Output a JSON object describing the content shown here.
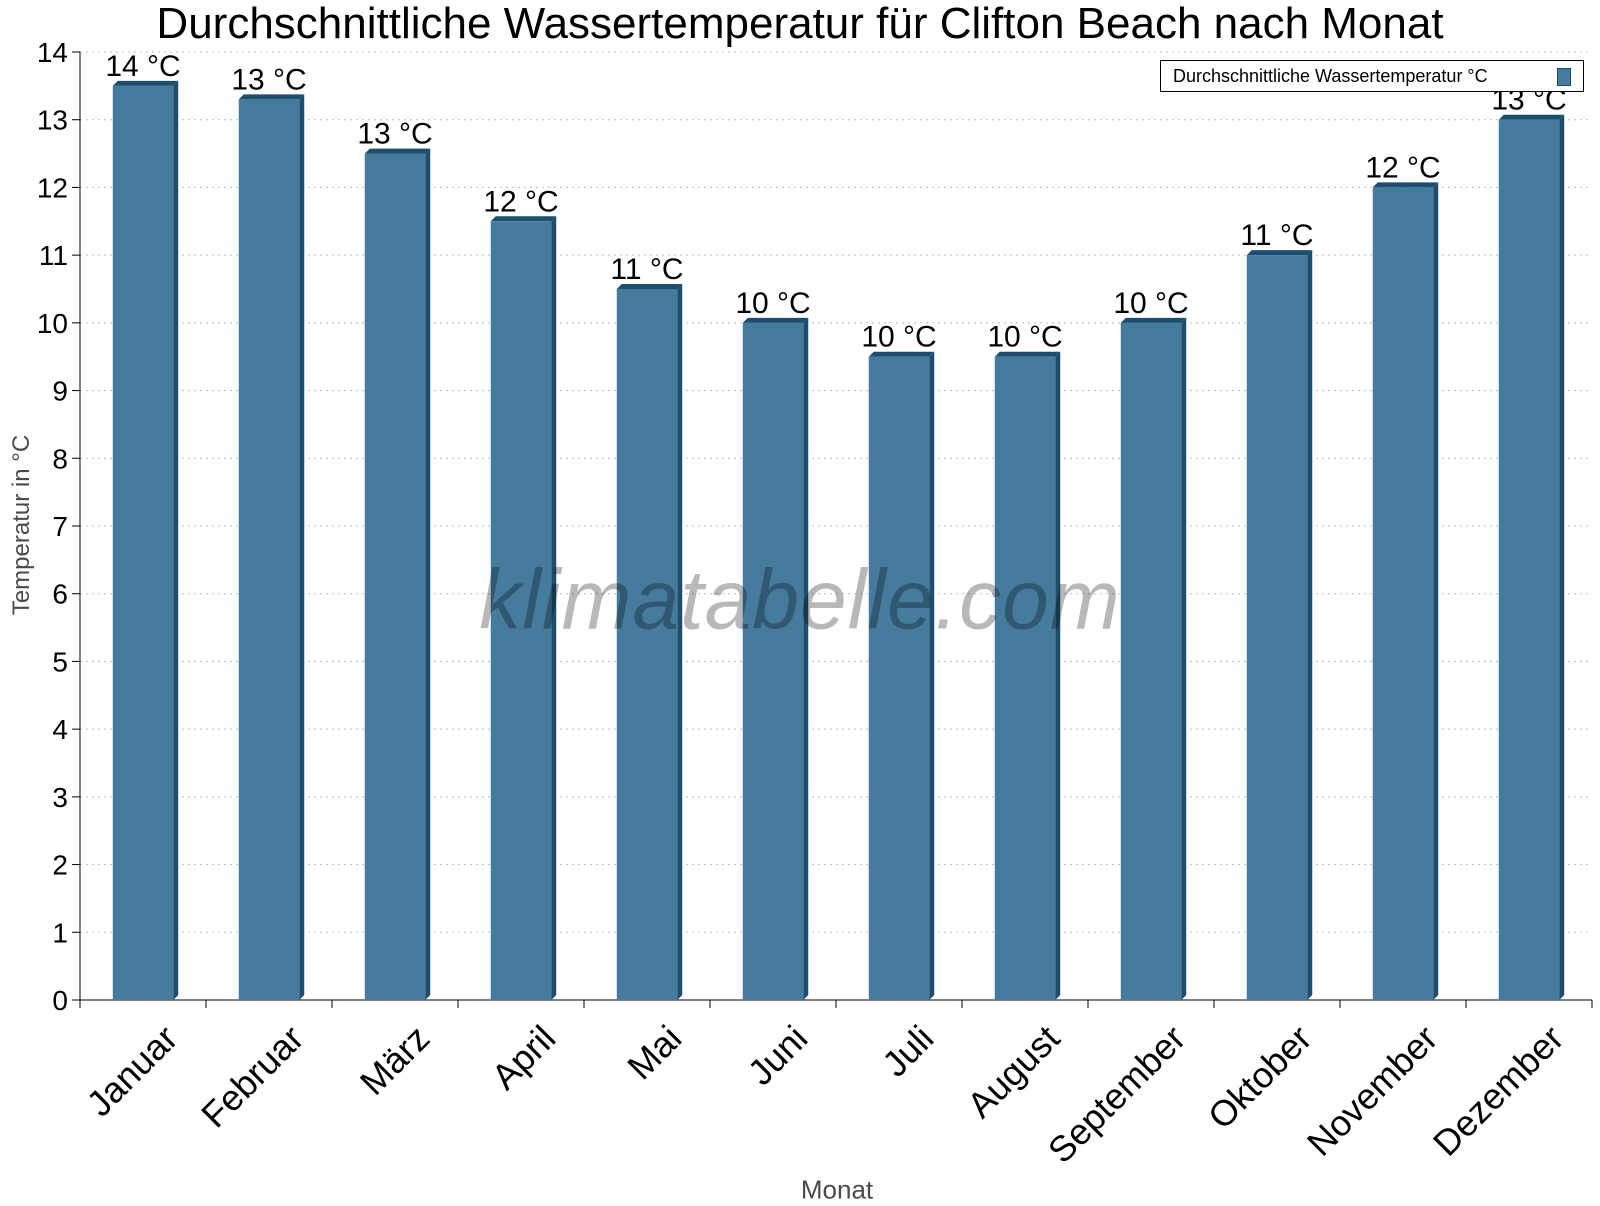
{
  "chart_data": {
    "type": "bar",
    "title": "Durchschnittliche Wassertemperatur für Clifton Beach nach Monat",
    "xlabel": "Monat",
    "ylabel": "Temperatur in °C",
    "categories": [
      "Januar",
      "Februar",
      "März",
      "April",
      "Mai",
      "Juni",
      "Juli",
      "August",
      "September",
      "Oktober",
      "November",
      "Dezember"
    ],
    "series": [
      {
        "name": "Durchschnittliche Wassertemperatur °C",
        "values": [
          13.5,
          13.3,
          12.5,
          11.5,
          10.5,
          10.0,
          9.5,
          9.5,
          10.0,
          11.0,
          12.0,
          13.0
        ],
        "labels": [
          "14 °C",
          "13 °C",
          "13 °C",
          "12 °C",
          "11 °C",
          "10 °C",
          "10 °C",
          "10 °C",
          "10 °C",
          "11 °C",
          "12 °C",
          "13 °C"
        ],
        "color": "#457b9d"
      }
    ],
    "ylim": [
      0,
      14
    ],
    "yticks": [
      0,
      1,
      2,
      3,
      4,
      5,
      6,
      7,
      8,
      9,
      10,
      11,
      12,
      13,
      14
    ],
    "grid": true,
    "legend": "top-right",
    "watermark": "klimatabelle.com"
  }
}
